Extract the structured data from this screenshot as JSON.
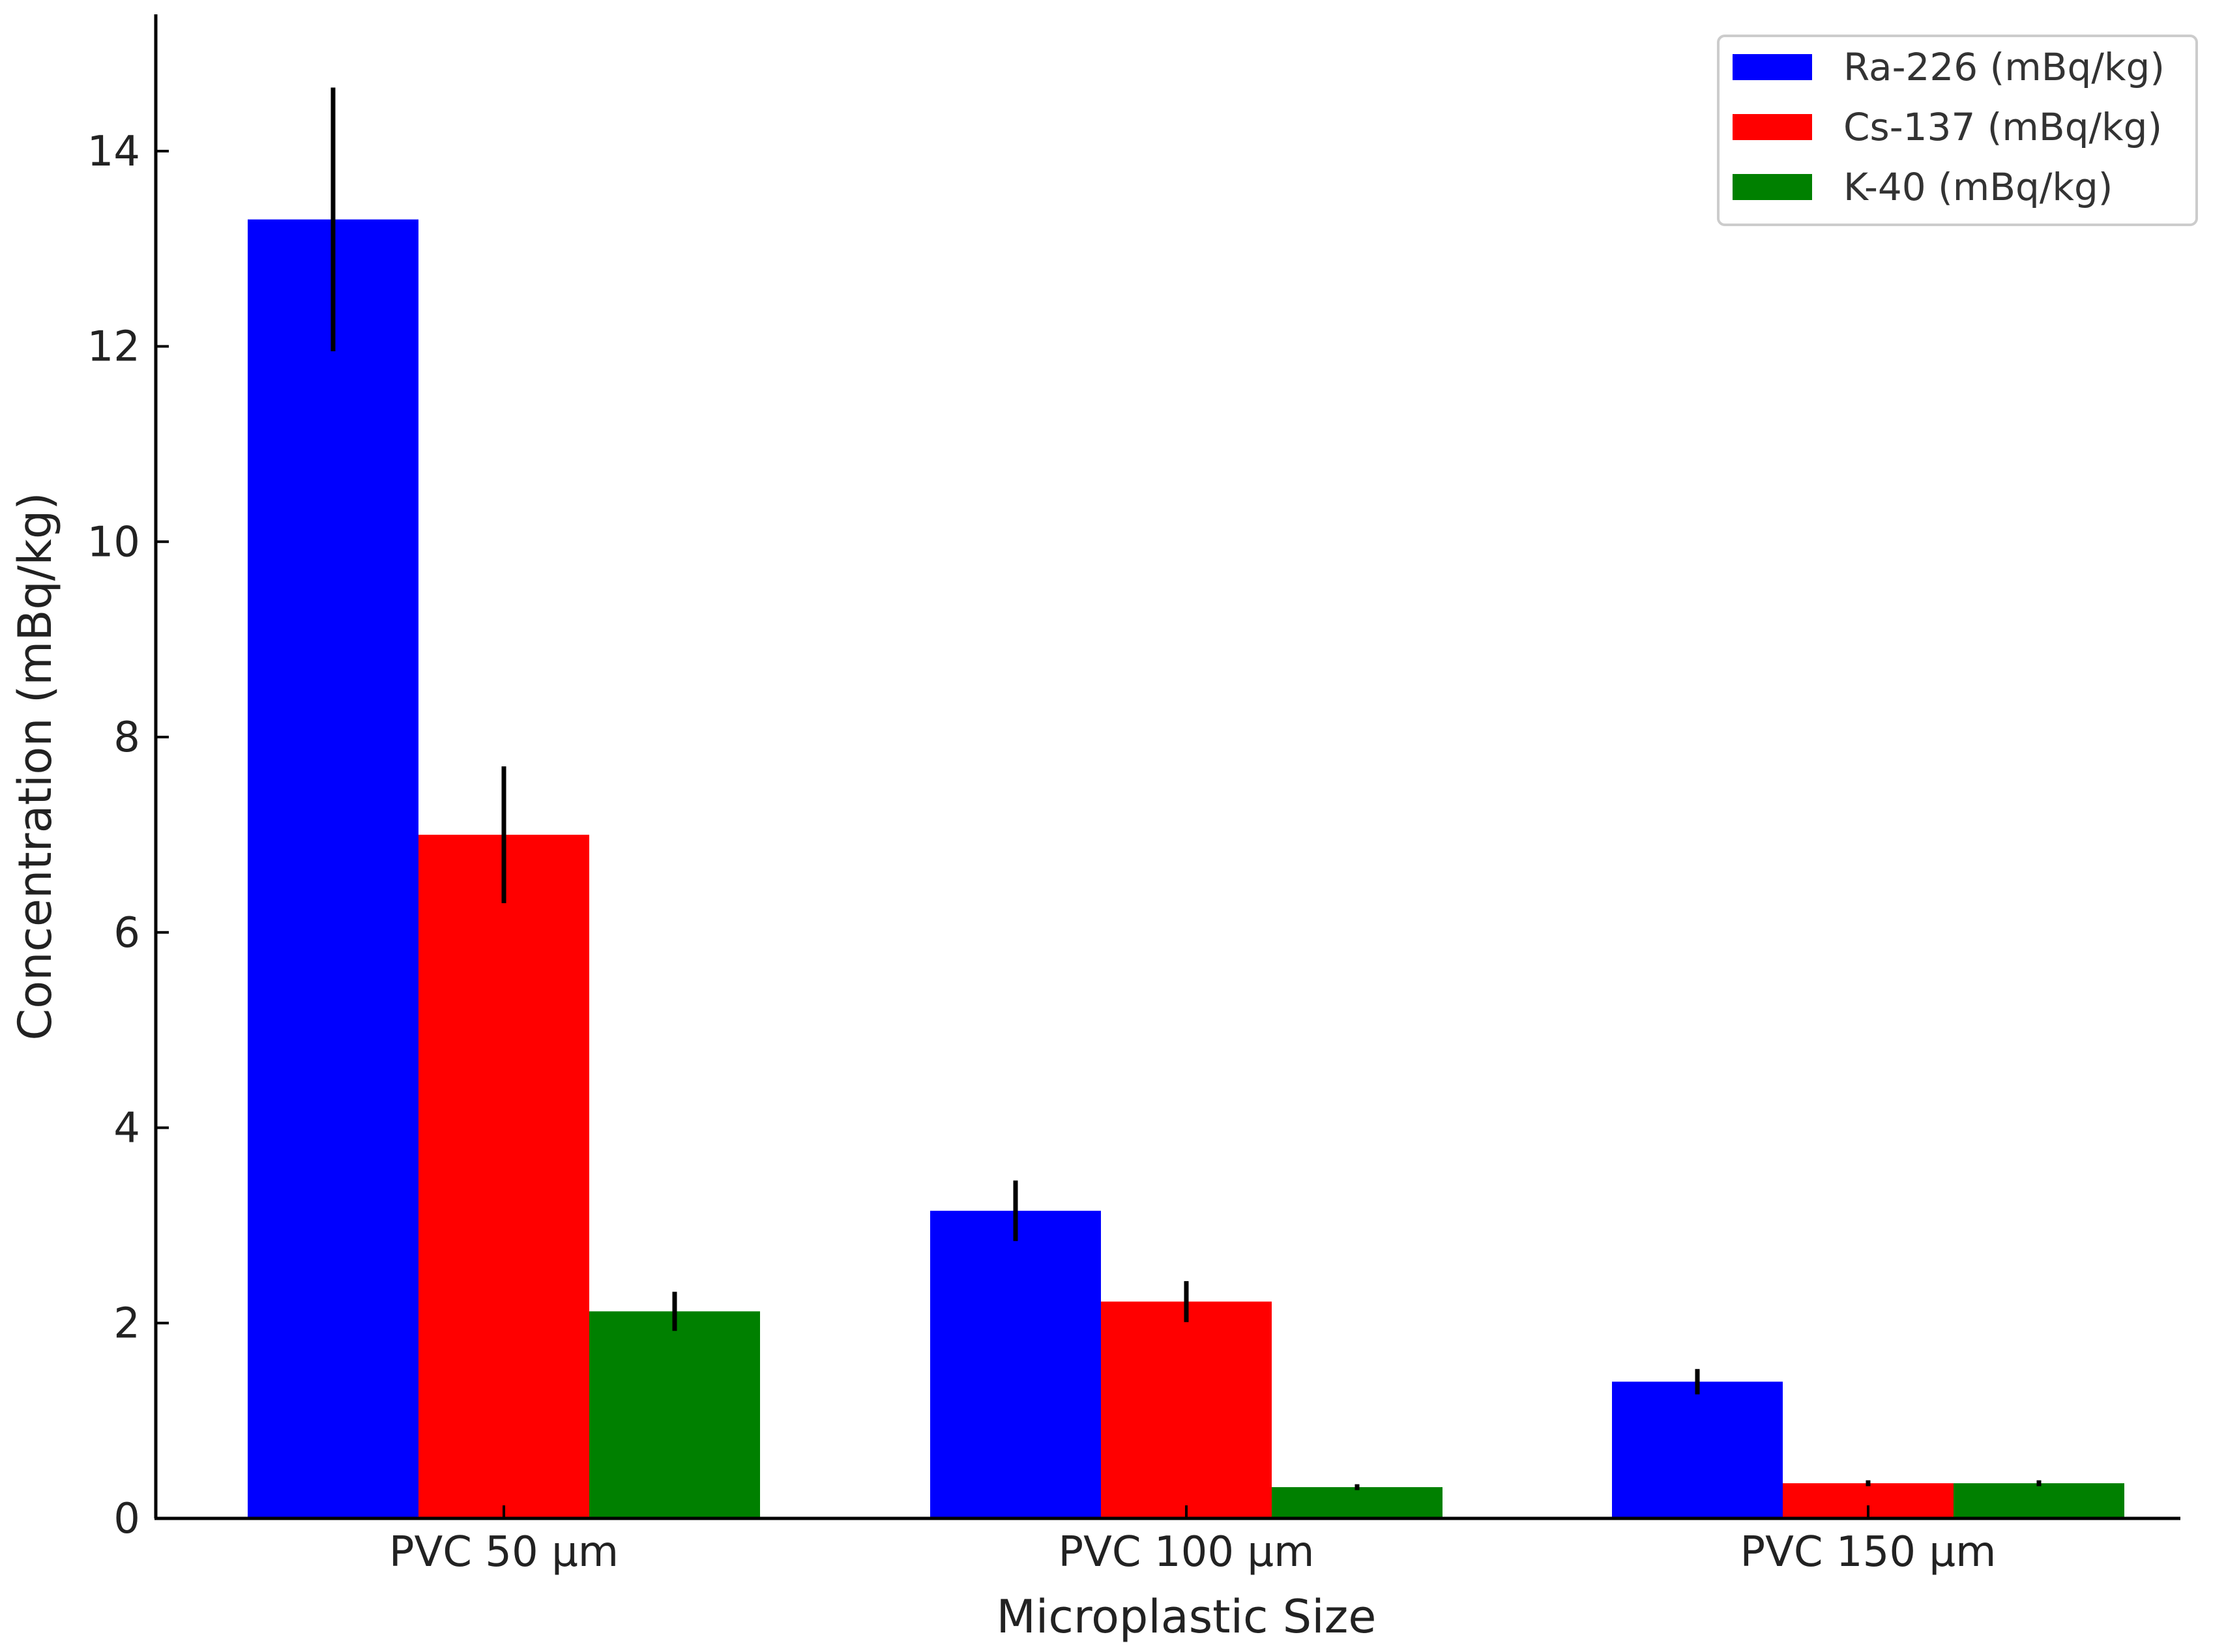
{
  "chart_data": {
    "type": "bar",
    "title": "",
    "xlabel": "Microplastic Size",
    "ylabel": "Concentration (mBq/kg)",
    "categories": [
      "PVC 50 µm",
      "PVC 100 µm",
      "PVC 150 µm"
    ],
    "series": [
      {
        "name": "Ra-226 (mBq/kg)",
        "color": "#0000ff",
        "values": [
          13.3,
          3.15,
          1.4
        ],
        "errors": [
          1.35,
          0.31,
          0.13
        ]
      },
      {
        "name": "Cs-137 (mBq/kg)",
        "color": "#ff0000",
        "values": [
          7.0,
          2.22,
          0.36
        ],
        "errors": [
          0.7,
          0.21,
          0.03
        ]
      },
      {
        "name": "K-40 (mBq/kg)",
        "color": "#008000",
        "values": [
          2.12,
          0.32,
          0.36
        ],
        "errors": [
          0.2,
          0.03,
          0.03
        ]
      }
    ],
    "ylim": [
      0,
      15.4
    ],
    "yticks": [
      0,
      2,
      4,
      6,
      8,
      10,
      12,
      14
    ],
    "grid": false,
    "legend": "top-right"
  }
}
